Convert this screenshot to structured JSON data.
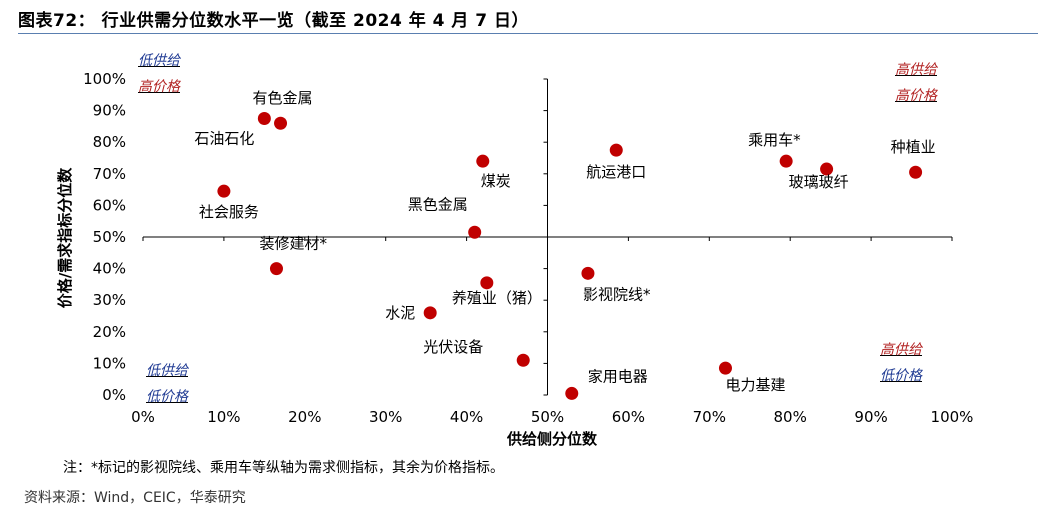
{
  "title": "图表72：   行业供需分位数水平一览（截至 2024 年 4 月 7 日）",
  "note": "注：*标记的影视院线、乘用车等纵轴为需求侧指标，其余为价格指标。",
  "source": "资料来源：Wind，CEIC，华泰研究",
  "quadrants": {
    "top_left": [
      "低供给",
      "高价格"
    ],
    "top_right": [
      "高供给",
      "高价格"
    ],
    "bottom_left": [
      "低供给",
      "低价格"
    ],
    "bottom_right": [
      "高供给",
      "低价格"
    ]
  },
  "colors": {
    "marker": "#c00000",
    "quadrant_blue": "#1f3a93",
    "quadrant_red": "#b22222",
    "title_rule": "#5a7fb0"
  },
  "chart_data": {
    "type": "scatter",
    "xlabel": "供给侧分位数",
    "ylabel": "价格/需求指标分位数",
    "xlim": [
      0,
      1
    ],
    "ylim": [
      0,
      1
    ],
    "xticks": [
      "0%",
      "10%",
      "20%",
      "30%",
      "40%",
      "50%",
      "60%",
      "70%",
      "80%",
      "90%",
      "100%"
    ],
    "yticks": [
      "0%",
      "10%",
      "20%",
      "30%",
      "40%",
      "50%",
      "60%",
      "70%",
      "80%",
      "90%",
      "100%"
    ],
    "points": [
      {
        "label": "有色金属",
        "x": 0.17,
        "y": 0.86
      },
      {
        "label": "石油石化",
        "x": 0.15,
        "y": 0.875
      },
      {
        "label": "煤炭",
        "x": 0.42,
        "y": 0.74
      },
      {
        "label": "航运港口",
        "x": 0.585,
        "y": 0.775
      },
      {
        "label": "乘用车*",
        "x": 0.795,
        "y": 0.74
      },
      {
        "label": "玻璃玻纤",
        "x": 0.845,
        "y": 0.715
      },
      {
        "label": "种植业",
        "x": 0.955,
        "y": 0.705
      },
      {
        "label": "社会服务",
        "x": 0.1,
        "y": 0.645
      },
      {
        "label": "黑色金属",
        "x": 0.41,
        "y": 0.515
      },
      {
        "label": "装修建材*",
        "x": 0.165,
        "y": 0.4
      },
      {
        "label": "影视院线*",
        "x": 0.55,
        "y": 0.385
      },
      {
        "label": "养殖业（猪）",
        "x": 0.425,
        "y": 0.355
      },
      {
        "label": "水泥",
        "x": 0.355,
        "y": 0.26
      },
      {
        "label": "光伏设备",
        "x": 0.47,
        "y": 0.11
      },
      {
        "label": "电力基建",
        "x": 0.72,
        "y": 0.085
      },
      {
        "label": "家用电器",
        "x": 0.53,
        "y": 0.005
      }
    ]
  }
}
